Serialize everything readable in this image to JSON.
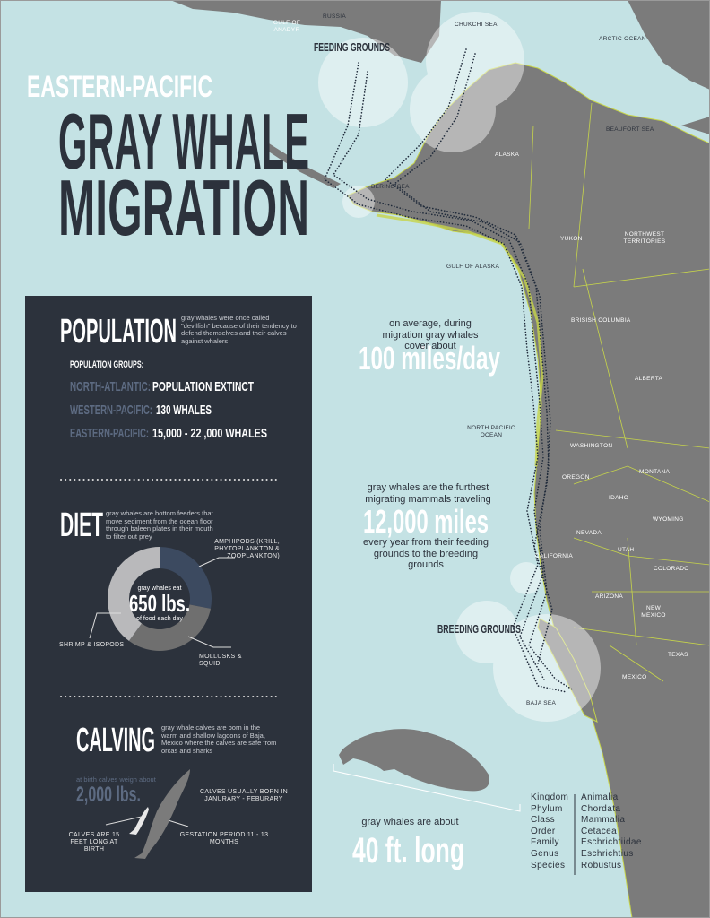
{
  "header": {
    "eyebrow": "EASTERN-PACIFIC",
    "title": [
      "GRAY WHALE",
      "MIGRATION"
    ]
  },
  "map": {
    "labels": {
      "russia": "RUSSIA",
      "gulf_of_anadyr": "GULF OF ANADYR",
      "chukchi_sea": "CHUKCHI SEA",
      "arctic_ocean": "ARCTIC OCEAN",
      "beaufort_sea": "BEAUFORT SEA",
      "alaska": "ALASKA",
      "bering_sea": "BERING SEA",
      "yukon": "YUKON",
      "northwest_territories": "NORTHWEST TERRITORIES",
      "gulf_of_alaska": "GULF OF ALASKA",
      "british_columbia": "BRISISH COLUMBIA",
      "alberta": "ALBERTA",
      "north_pacific_ocean": "NORTH PACIFIC OCEAN",
      "washington": "WASHINGTON",
      "montana": "MONTANA",
      "oregon": "OREGON",
      "idaho": "IDAHO",
      "wyoming": "WYOMING",
      "nevada": "NEVADA",
      "utah": "UTAH",
      "colorado": "COLORADO",
      "california": "CALIFORNIA",
      "arizona": "ARIZONA",
      "new_mexico": "NEW MEXICO",
      "texas": "TEXAS",
      "mexico": "MEXICO",
      "baja_sea": "BAJA SEA"
    },
    "feeding_grounds": "FEEDING GROUNDS",
    "breeding_grounds": "BREEDING GROUNDS"
  },
  "facts": {
    "speed": {
      "intro": "on average, during migration gray whales cover about",
      "value": "100 miles/day"
    },
    "distance": {
      "intro": "gray whales are the furthest migrating mammals traveling",
      "value": "12,000 miles",
      "outro": "every year from their feeding grounds to the breeding grounds"
    },
    "length": {
      "intro": "gray whales are about",
      "value": "40 ft. long"
    }
  },
  "taxonomy": [
    [
      "Kingdom",
      "Animalia"
    ],
    [
      "Phylum",
      "Chordata"
    ],
    [
      "Class",
      "Mammalia"
    ],
    [
      "Order",
      "Cetacea"
    ],
    [
      "Family",
      "Eschrichtiidae"
    ],
    [
      "Genus",
      "Eschrichtius"
    ],
    [
      "Species",
      "Robustus"
    ]
  ],
  "population": {
    "title": "POPULATION",
    "description": "gray whales were once called \"devilfish\" because of their tendency to defend themselves and their calves against whalers",
    "groups_heading": "POPULATION GROUPS:",
    "groups": [
      {
        "name": "NORTH-ATLANTIC:",
        "value": "POPULATION EXTINCT"
      },
      {
        "name": "WESTERN-PACIFIC:",
        "value": "130 WHALES"
      },
      {
        "name": "EASTERN-PACIFIC:",
        "value": "15,000 - 22 ,000 WHALES"
      }
    ]
  },
  "diet": {
    "title": "DIET",
    "description": "gray whales are bottom feeders that move sediment from the ocean floor through baleen plates in their mouth to filter out prey",
    "center": {
      "intro": "gray whales eat",
      "value": "650 lbs.",
      "outro": "of food each day"
    }
  },
  "chart_data": {
    "type": "donut",
    "categories": [
      "AMPHIPODS (KRILL, PHYTOPLANKTON & ZOOPLANKTON)",
      "MOLLUSKS & SQUID",
      "SHRIMP & ISOPODS"
    ],
    "values": [
      28,
      32,
      40
    ],
    "colors": [
      "#3c4a60",
      "#6f6f6f",
      "#b9b9bb"
    ]
  },
  "calving": {
    "title": "CALVING",
    "description": "gray whale calves are born in the warm and shallow lagoons of Baja, Mexico where the calves are safe from orcas and sharks",
    "weight_intro": "at birth calves weigh about",
    "weight": "2,000 lbs.",
    "season": "CALVES USUALLY BORN IN JANURARY - FEBURARY",
    "length": "CALVES ARE 15 FEET LONG AT BIRTH",
    "gestation": "GESTATION PERIOD 11 - 13 MONTHS"
  }
}
